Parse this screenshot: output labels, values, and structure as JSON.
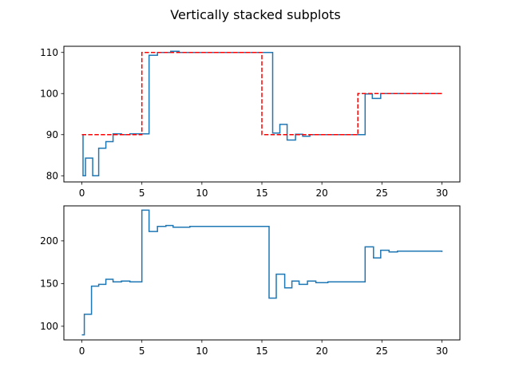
{
  "title": "Vertically stacked subplots",
  "chart_data": [
    {
      "type": "line",
      "step": "post",
      "xlim": [
        -1.5,
        31.5
      ],
      "ylim": [
        78.5,
        111.5
      ],
      "xticks": [
        0,
        5,
        10,
        15,
        20,
        25,
        30
      ],
      "yticks": [
        80,
        90,
        100,
        110
      ],
      "series": [
        {
          "color": "#1f77b4",
          "style": "solid",
          "x": [
            0,
            0.1,
            0.3,
            0.9,
            1.4,
            2.0,
            2.6,
            3.3,
            4.0,
            5.6,
            6.3,
            7.4,
            8.1,
            12.0,
            15.9,
            16.5,
            17.1,
            17.8,
            18.4,
            19.0,
            23.6,
            24.2,
            24.9,
            30
          ],
          "y": [
            90,
            80,
            84.3,
            80,
            86.7,
            88.3,
            90.2,
            90,
            90.2,
            109.3,
            110,
            110.3,
            110,
            110,
            90.4,
            92.5,
            88.7,
            90.1,
            89.6,
            90,
            99.9,
            98.8,
            100,
            100
          ]
        },
        {
          "color": "#ff0000",
          "style": "dashed",
          "x": [
            0,
            5,
            15,
            23,
            30
          ],
          "y": [
            90,
            110,
            90,
            100,
            100
          ]
        }
      ]
    },
    {
      "type": "line",
      "step": "post",
      "xlim": [
        -1.5,
        31.5
      ],
      "ylim": [
        84,
        241
      ],
      "xticks": [
        0,
        5,
        10,
        15,
        20,
        25,
        30
      ],
      "yticks": [
        100,
        150,
        200
      ],
      "series": [
        {
          "color": "#1f77b4",
          "style": "solid",
          "x": [
            0,
            0.2,
            0.8,
            1.4,
            2.0,
            2.6,
            3.3,
            4.0,
            5.0,
            5.6,
            6.3,
            7.0,
            7.6,
            9.0,
            15.0,
            15.6,
            16.2,
            16.9,
            17.5,
            18.1,
            18.8,
            19.5,
            20.5,
            23.0,
            23.6,
            24.3,
            24.9,
            25.6,
            26.3,
            30
          ],
          "y": [
            90,
            114,
            147,
            149,
            155,
            152,
            153,
            152,
            236,
            211,
            217,
            218,
            216,
            217,
            217,
            133,
            161,
            145,
            153,
            149,
            153,
            151,
            152,
            152,
            193,
            180,
            189,
            187,
            188,
            187
          ]
        }
      ]
    }
  ]
}
